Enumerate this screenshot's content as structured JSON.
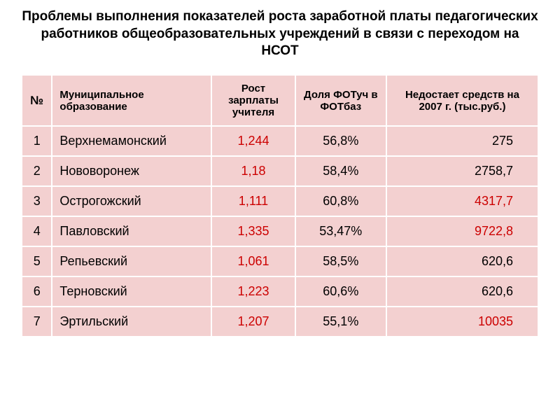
{
  "title": "Проблемы выполнения показателей роста заработной платы педагогических работников общеобразовательных учреждений в связи с переходом на НСОТ",
  "table": {
    "headers": {
      "num": "№",
      "name": "Муниципальное образование",
      "growth": "Рост зарплаты учителя",
      "share": "Доля ФОТуч в ФОТбаз",
      "shortage": "Недостает средств на 2007 г. (тыс.руб.)"
    },
    "rows": [
      {
        "num": "1",
        "name": "Верхнемамонский",
        "growth": "1,244",
        "share": "56,8%",
        "shortage": "275",
        "shortage_red": false
      },
      {
        "num": "2",
        "name": "Нововоронеж",
        "growth": "1,18",
        "share": "58,4%",
        "shortage": "2758,7",
        "shortage_red": false
      },
      {
        "num": "3",
        "name": "Острогожский",
        "growth": "1,111",
        "share": "60,8%",
        "shortage": "4317,7",
        "shortage_red": true
      },
      {
        "num": "4",
        "name": "Павловский",
        "growth": "1,335",
        "share": "53,47%",
        "shortage": "9722,8",
        "shortage_red": true
      },
      {
        "num": "5",
        "name": "Репьевский",
        "growth": "1,061",
        "share": "58,5%",
        "shortage": "620,6",
        "shortage_red": false
      },
      {
        "num": "6",
        "name": "Терновский",
        "growth": "1,223",
        "share": "60,6%",
        "shortage": "620,6",
        "shortage_red": false
      },
      {
        "num": "7",
        "name": "Эртильский",
        "growth": "1,207",
        "share": "55,1%",
        "shortage": "10035",
        "shortage_red": true
      }
    ],
    "colors": {
      "cell_bg": "#f3d0d0",
      "border": "#ffffff",
      "text": "#000000",
      "red_text": "#cc0000"
    }
  }
}
